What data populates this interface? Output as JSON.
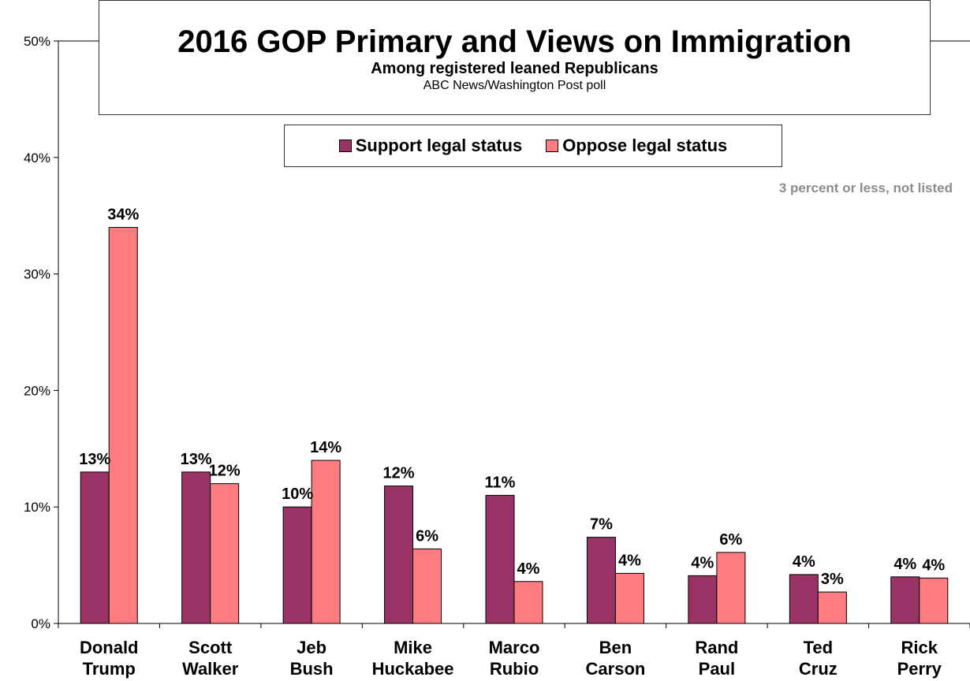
{
  "title": "2016 GOP Primary and Views on Immigration",
  "subtitle": "Among registered leaned Republicans",
  "source": "ABC News/Washington Post poll",
  "note": "3 percent or less, not listed",
  "colors": {
    "support": "#993366",
    "oppose": "#ff7c80"
  },
  "chart_data": {
    "type": "bar",
    "title": "2016 GOP Primary and Views on Immigration",
    "subtitle": "Among registered leaned Republicans",
    "categories": [
      [
        "Donald",
        "Trump"
      ],
      [
        "Scott",
        "Walker"
      ],
      [
        "Jeb",
        "Bush"
      ],
      [
        "Mike",
        "Huckabee"
      ],
      [
        "Marco",
        "Rubio"
      ],
      [
        "Ben",
        "Carson"
      ],
      [
        "Rand",
        "Paul"
      ],
      [
        "Ted",
        "Cruz"
      ],
      [
        "Rick",
        "Perry"
      ]
    ],
    "series": [
      {
        "name": "Support legal status",
        "values": [
          13,
          13,
          10,
          11.8,
          11,
          7.4,
          4.1,
          4.2,
          4
        ],
        "labels": [
          "13%",
          "13%",
          "10%",
          "12%",
          "11%",
          "7%",
          "4%",
          "4%",
          "4%"
        ]
      },
      {
        "name": "Oppose legal status",
        "values": [
          34,
          12,
          14,
          6.4,
          3.6,
          4.3,
          6.1,
          2.7,
          3.9
        ],
        "labels": [
          "34%",
          "12%",
          "14%",
          "6%",
          "4%",
          "4%",
          "6%",
          "3%",
          "4%"
        ]
      }
    ],
    "ylim": [
      0,
      50
    ],
    "yticks": [
      0,
      10,
      20,
      30,
      40,
      50
    ],
    "ytick_labels": [
      "0%",
      "10%",
      "20%",
      "30%",
      "40%",
      "50%"
    ],
    "grid": false,
    "legend": "top-center"
  }
}
